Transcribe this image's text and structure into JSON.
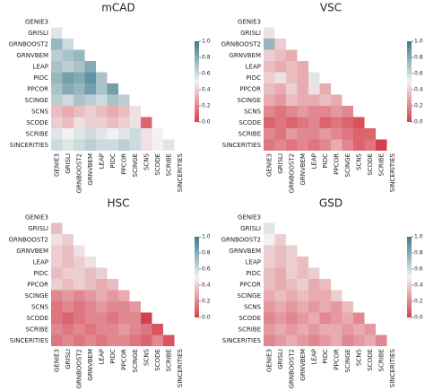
{
  "chart_data": [
    {
      "type": "heatmap",
      "title": "mCAD",
      "categories": [
        "GENIE3",
        "GRISLI",
        "GRNBOOST2",
        "GRNVBEM",
        "LEAP",
        "PIDC",
        "PPCOR",
        "SCINGE",
        "SCNS",
        "SCODE",
        "SCRIBE",
        "SINCERITIES"
      ],
      "values": [
        [],
        [
          0.55
        ],
        [
          0.75,
          0.6
        ],
        [
          0.65,
          0.7,
          0.75
        ],
        [
          0.7,
          0.65,
          0.7,
          0.8
        ],
        [
          0.75,
          0.85,
          0.8,
          0.9,
          0.7
        ],
        [
          0.7,
          0.8,
          0.75,
          0.85,
          0.7,
          0.85
        ],
        [
          0.65,
          0.6,
          0.7,
          0.65,
          0.6,
          0.7,
          0.65
        ],
        [
          0.35,
          0.3,
          0.35,
          0.4,
          0.35,
          0.3,
          0.35,
          0.45
        ],
        [
          0.4,
          0.35,
          0.45,
          0.4,
          0.4,
          0.35,
          0.4,
          0.45,
          0.1
        ],
        [
          0.55,
          0.5,
          0.55,
          0.6,
          0.55,
          0.5,
          0.55,
          0.6,
          0.45,
          0.5
        ],
        [
          0.6,
          0.55,
          0.6,
          0.65,
          0.6,
          0.6,
          0.65,
          0.6,
          0.45,
          0.5,
          0.55
        ]
      ],
      "colormap": [
        "#d6404e",
        "#f2f2f2",
        "#3b7c8c"
      ],
      "clim": [
        0,
        1
      ],
      "cticks": [
        {
          "value": 0,
          "label": "0.0"
        },
        {
          "value": 0.2,
          "label": "0.2"
        },
        {
          "value": 0.4,
          "label": "0.4"
        },
        {
          "value": 0.6,
          "label": "0.6"
        },
        {
          "value": 0.8,
          "label": "0.8"
        },
        {
          "value": 1,
          "label": "1.0"
        }
      ]
    },
    {
      "type": "heatmap",
      "title": "VSC",
      "categories": [
        "GENIE3",
        "GRISLI",
        "GRNBOOST2",
        "GRNVBEM",
        "LEAP",
        "PIDC",
        "PPCOR",
        "SCINGE",
        "SCNS",
        "SCODE",
        "SCRIBE",
        "SINCERITIES"
      ],
      "values": [
        [],
        [
          0.45
        ],
        [
          0.75,
          0.4
        ],
        [
          0.4,
          0.35,
          0.3
        ],
        [
          0.35,
          0.3,
          0.35,
          0.3
        ],
        [
          0.4,
          0.45,
          0.35,
          0.3,
          0.55
        ],
        [
          0.35,
          0.3,
          0.4,
          0.3,
          0.45,
          0.3
        ],
        [
          0.3,
          0.25,
          0.35,
          0.3,
          0.3,
          0.35,
          0.3
        ],
        [
          0.2,
          0.15,
          0.2,
          0.25,
          0.2,
          0.2,
          0.25,
          0.2
        ],
        [
          0.1,
          0.15,
          0.1,
          0.15,
          0.2,
          0.1,
          0.15,
          0.1,
          0.05
        ],
        [
          0.2,
          0.15,
          0.25,
          0.2,
          0.2,
          0.25,
          0.2,
          0.15,
          0.1,
          0.1
        ],
        [
          0.15,
          0.2,
          0.15,
          0.2,
          0.15,
          0.2,
          0.3,
          0.2,
          0.1,
          0.15,
          0.0
        ]
      ],
      "colormap": [
        "#d6404e",
        "#f2f2f2",
        "#3b7c8c"
      ],
      "clim": [
        0,
        1
      ],
      "cticks": [
        {
          "value": 0,
          "label": "0.0"
        },
        {
          "value": 0.2,
          "label": "0.2"
        },
        {
          "value": 0.4,
          "label": "0.4"
        },
        {
          "value": 0.6,
          "label": "0.6"
        },
        {
          "value": 0.8,
          "label": "0.8"
        },
        {
          "value": 1,
          "label": "1.0"
        }
      ]
    },
    {
      "type": "heatmap",
      "title": "HSC",
      "categories": [
        "GENIE3",
        "GRISLI",
        "GRNBOOST2",
        "GRNVBEM",
        "LEAP",
        "PIDC",
        "PPCOR",
        "SCINGE",
        "SCNS",
        "SCODE",
        "SCRIBE",
        "SINCERITIES"
      ],
      "values": [
        [],
        [
          0.35
        ],
        [
          0.45,
          0.4
        ],
        [
          0.4,
          0.35,
          0.45
        ],
        [
          0.4,
          0.35,
          0.4,
          0.45
        ],
        [
          0.35,
          0.4,
          0.4,
          0.35,
          0.4
        ],
        [
          0.4,
          0.35,
          0.4,
          0.35,
          0.3,
          0.35
        ],
        [
          0.2,
          0.25,
          0.2,
          0.25,
          0.3,
          0.25,
          0.3
        ],
        [
          0.15,
          0.2,
          0.15,
          0.2,
          0.25,
          0.2,
          0.2,
          0.25
        ],
        [
          0.15,
          0.1,
          0.15,
          0.2,
          0.2,
          0.15,
          0.2,
          0.2,
          0.0
        ],
        [
          0.2,
          0.15,
          0.2,
          0.15,
          0.2,
          0.2,
          0.25,
          0.2,
          0.15,
          0.05
        ],
        [
          0.15,
          0.2,
          0.15,
          0.2,
          0.15,
          0.2,
          0.2,
          0.15,
          0.1,
          0.2,
          0.05
        ]
      ],
      "colormap": [
        "#d6404e",
        "#f2f2f2",
        "#3b7c8c"
      ],
      "clim": [
        0,
        1
      ],
      "cticks": [
        {
          "value": 0,
          "label": "0.0"
        },
        {
          "value": 0.2,
          "label": "0.2"
        },
        {
          "value": 0.4,
          "label": "0.4"
        },
        {
          "value": 0.6,
          "label": "0.6"
        },
        {
          "value": 0.8,
          "label": "0.8"
        },
        {
          "value": 1,
          "label": "1.0"
        }
      ]
    },
    {
      "type": "heatmap",
      "title": "GSD",
      "categories": [
        "GENIE3",
        "GRISLI",
        "GRNBOOST2",
        "GRNVBEM",
        "LEAP",
        "PIDC",
        "PPCOR",
        "SCINGE",
        "SCNS",
        "SCODE",
        "SCRIBE",
        "SINCERITIES"
      ],
      "values": [
        [],
        [
          0.55
        ],
        [
          0.5,
          0.4
        ],
        [
          0.4,
          0.35,
          0.4
        ],
        [
          0.4,
          0.35,
          0.4,
          0.35
        ],
        [
          0.35,
          0.3,
          0.4,
          0.35,
          0.4
        ],
        [
          0.35,
          0.3,
          0.35,
          0.4,
          0.3,
          0.35
        ],
        [
          0.3,
          0.35,
          0.3,
          0.35,
          0.3,
          0.3,
          0.4
        ],
        [
          0.25,
          0.3,
          0.25,
          0.3,
          0.25,
          0.3,
          0.25,
          0.35
        ],
        [
          0.2,
          0.25,
          0.2,
          0.25,
          0.3,
          0.2,
          0.25,
          0.3,
          0.2
        ],
        [
          0.25,
          0.3,
          0.25,
          0.3,
          0.25,
          0.3,
          0.3,
          0.25,
          0.3,
          0.25
        ],
        [
          0.2,
          0.25,
          0.3,
          0.25,
          0.2,
          0.25,
          0.3,
          0.2,
          0.25,
          0.3,
          0.2
        ]
      ],
      "colormap": [
        "#d6404e",
        "#f2f2f2",
        "#3b7c8c"
      ],
      "clim": [
        0,
        1
      ],
      "cticks": [
        {
          "value": 0,
          "label": "0.0"
        },
        {
          "value": 0.2,
          "label": "0.2"
        },
        {
          "value": 0.4,
          "label": "0.4"
        },
        {
          "value": 0.6,
          "label": "0.6"
        },
        {
          "value": 0.8,
          "label": "0.8"
        },
        {
          "value": 1,
          "label": "1.0"
        }
      ]
    }
  ]
}
